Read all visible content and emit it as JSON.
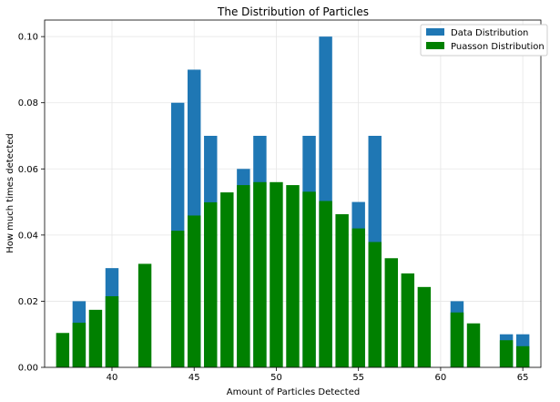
{
  "chart_data": {
    "type": "bar",
    "title": "The Distribution of Particles",
    "xlabel": "Amount of Particles Detected",
    "ylabel": "How much times detected",
    "xlim": [
      35.9,
      66.1
    ],
    "ylim": [
      0,
      0.105
    ],
    "xticks": [
      40,
      45,
      50,
      55,
      60,
      65
    ],
    "yticks": [
      0.0,
      0.02,
      0.04,
      0.06,
      0.08,
      0.1
    ],
    "ytick_labels": [
      "0.00",
      "0.02",
      "0.04",
      "0.06",
      "0.08",
      "0.10"
    ],
    "grid": true,
    "legend_position": "top-right",
    "series": [
      {
        "name": "Data Distribution",
        "color": "#1f77b4",
        "x": [
          38,
          40,
          44,
          45,
          46,
          48,
          49,
          52,
          53,
          55,
          56,
          61,
          64,
          65
        ],
        "values": [
          0.02,
          0.03,
          0.08,
          0.09,
          0.07,
          0.06,
          0.07,
          0.07,
          0.1,
          0.05,
          0.07,
          0.02,
          0.01,
          0.01
        ]
      },
      {
        "name": "Puasson Distribution",
        "color": "#008000",
        "x": [
          37,
          38,
          39,
          40,
          42,
          44,
          45,
          46,
          47,
          48,
          49,
          50,
          51,
          52,
          53,
          54,
          55,
          56,
          57,
          58,
          59,
          61,
          62,
          64,
          65
        ],
        "values": [
          0.0104,
          0.0135,
          0.0174,
          0.0215,
          0.0313,
          0.0413,
          0.0459,
          0.0499,
          0.0529,
          0.0551,
          0.056,
          0.056,
          0.0551,
          0.0531,
          0.0503,
          0.0463,
          0.042,
          0.0379,
          0.033,
          0.0284,
          0.0243,
          0.0166,
          0.0133,
          0.0082,
          0.0064
        ]
      }
    ]
  }
}
